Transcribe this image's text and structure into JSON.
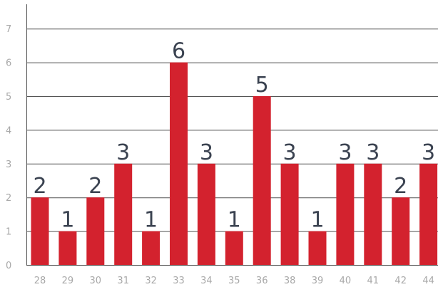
{
  "chart_data": {
    "type": "bar",
    "title": "",
    "xlabel": "",
    "ylabel": "",
    "categories": [
      "28",
      "29",
      "30",
      "31",
      "32",
      "33",
      "34",
      "35",
      "36",
      "38",
      "39",
      "40",
      "41",
      "42",
      "44"
    ],
    "values": [
      2,
      1,
      2,
      3,
      1,
      6,
      3,
      1,
      5,
      3,
      1,
      3,
      3,
      2,
      3
    ],
    "data_labels": [
      "2",
      "1",
      "2",
      "3",
      "1",
      "6",
      "3",
      "1",
      "5",
      "3",
      "1",
      "3",
      "3",
      "2",
      "3"
    ],
    "ylim": [
      0,
      7.5
    ],
    "y_ticks": [
      "0",
      "1",
      "2",
      "3",
      "4",
      "5",
      "6",
      "7"
    ],
    "grid": true,
    "legend": "none",
    "colors": {
      "bar": "#d3222e",
      "grid": "#555555",
      "tick_text": "#a8a8a8",
      "data_label": "#3a4250"
    }
  }
}
